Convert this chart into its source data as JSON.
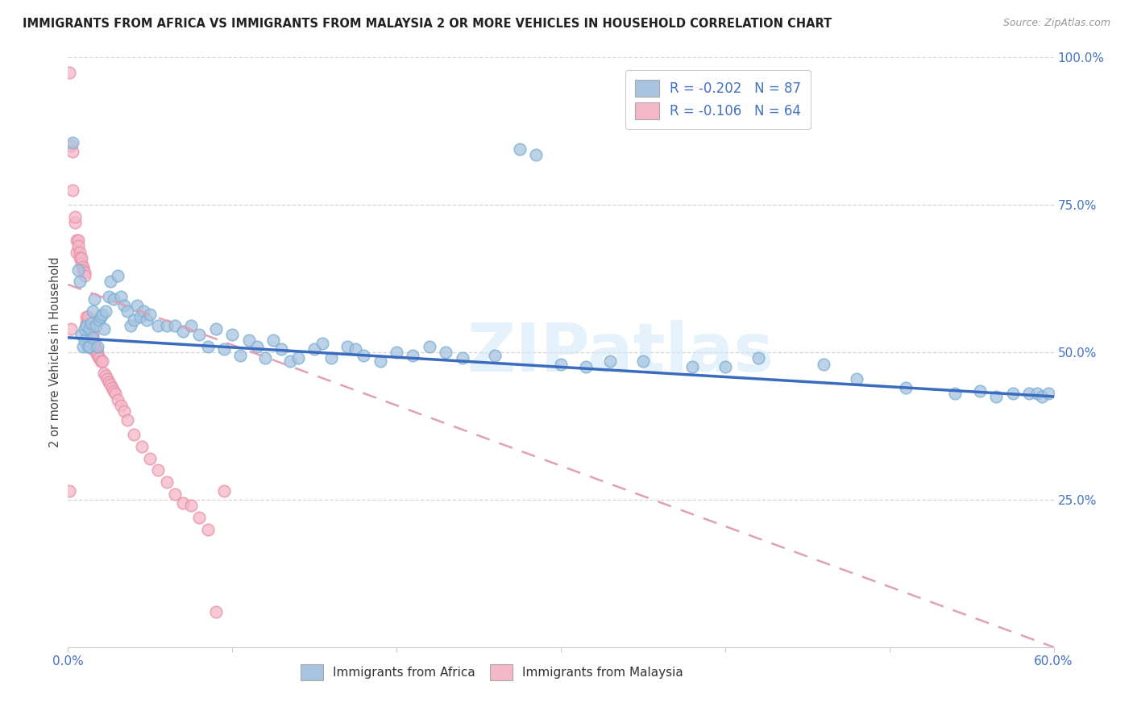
{
  "title": "IMMIGRANTS FROM AFRICA VS IMMIGRANTS FROM MALAYSIA 2 OR MORE VEHICLES IN HOUSEHOLD CORRELATION CHART",
  "source": "Source: ZipAtlas.com",
  "ylabel": "2 or more Vehicles in Household",
  "xlim": [
    0,
    0.6
  ],
  "ylim": [
    0,
    1.0
  ],
  "africa_color": "#a8c4e0",
  "africa_edge_color": "#7aafd4",
  "malaysia_color": "#f4b8c8",
  "malaysia_edge_color": "#e890a8",
  "africa_line_color": "#3a6bbf",
  "malaysia_line_color": "#e0a0b8",
  "legend_africa_label": "R = -0.202   N = 87",
  "legend_malaysia_label": "R = -0.106   N = 64",
  "watermark_text": "ZIPatlas",
  "africa_line_x0": 0.0,
  "africa_line_y0": 0.525,
  "africa_line_x1": 0.6,
  "africa_line_y1": 0.425,
  "malaysia_line_x0": 0.0,
  "malaysia_line_y0": 0.615,
  "malaysia_line_x1": 0.6,
  "malaysia_line_y1": 0.0,
  "africa_scatter_x": [
    0.003,
    0.006,
    0.007,
    0.008,
    0.009,
    0.01,
    0.01,
    0.011,
    0.012,
    0.013,
    0.013,
    0.014,
    0.015,
    0.015,
    0.016,
    0.017,
    0.018,
    0.019,
    0.02,
    0.021,
    0.022,
    0.023,
    0.025,
    0.026,
    0.028,
    0.03,
    0.032,
    0.034,
    0.036,
    0.038,
    0.04,
    0.042,
    0.044,
    0.046,
    0.048,
    0.05,
    0.055,
    0.06,
    0.065,
    0.07,
    0.075,
    0.08,
    0.085,
    0.09,
    0.095,
    0.1,
    0.105,
    0.11,
    0.115,
    0.12,
    0.125,
    0.13,
    0.135,
    0.14,
    0.15,
    0.155,
    0.16,
    0.17,
    0.175,
    0.18,
    0.19,
    0.2,
    0.21,
    0.22,
    0.23,
    0.24,
    0.26,
    0.275,
    0.285,
    0.3,
    0.315,
    0.33,
    0.35,
    0.38,
    0.4,
    0.42,
    0.46,
    0.48,
    0.51,
    0.54,
    0.555,
    0.565,
    0.575,
    0.585,
    0.59,
    0.593,
    0.597
  ],
  "africa_scatter_y": [
    0.855,
    0.64,
    0.62,
    0.53,
    0.51,
    0.52,
    0.54,
    0.545,
    0.51,
    0.51,
    0.54,
    0.55,
    0.525,
    0.57,
    0.59,
    0.545,
    0.51,
    0.555,
    0.56,
    0.565,
    0.54,
    0.57,
    0.595,
    0.62,
    0.59,
    0.63,
    0.595,
    0.58,
    0.57,
    0.545,
    0.555,
    0.58,
    0.56,
    0.57,
    0.555,
    0.565,
    0.545,
    0.545,
    0.545,
    0.535,
    0.545,
    0.53,
    0.51,
    0.54,
    0.505,
    0.53,
    0.495,
    0.52,
    0.51,
    0.49,
    0.52,
    0.505,
    0.485,
    0.49,
    0.505,
    0.515,
    0.49,
    0.51,
    0.505,
    0.495,
    0.485,
    0.5,
    0.495,
    0.51,
    0.5,
    0.49,
    0.495,
    0.845,
    0.835,
    0.48,
    0.475,
    0.485,
    0.485,
    0.475,
    0.475,
    0.49,
    0.48,
    0.455,
    0.44,
    0.43,
    0.435,
    0.425,
    0.43,
    0.43,
    0.43,
    0.425,
    0.43
  ],
  "malaysia_scatter_x": [
    0.001,
    0.001,
    0.002,
    0.002,
    0.003,
    0.003,
    0.004,
    0.004,
    0.005,
    0.005,
    0.006,
    0.006,
    0.007,
    0.007,
    0.008,
    0.008,
    0.009,
    0.009,
    0.01,
    0.01,
    0.011,
    0.011,
    0.012,
    0.012,
    0.013,
    0.013,
    0.014,
    0.014,
    0.015,
    0.015,
    0.016,
    0.016,
    0.017,
    0.017,
    0.018,
    0.018,
    0.019,
    0.019,
    0.02,
    0.021,
    0.022,
    0.023,
    0.024,
    0.025,
    0.026,
    0.027,
    0.028,
    0.029,
    0.03,
    0.032,
    0.034,
    0.036,
    0.04,
    0.045,
    0.05,
    0.055,
    0.06,
    0.065,
    0.07,
    0.075,
    0.08,
    0.085,
    0.09,
    0.095
  ],
  "malaysia_scatter_y": [
    0.975,
    0.265,
    0.85,
    0.54,
    0.84,
    0.775,
    0.72,
    0.73,
    0.69,
    0.67,
    0.69,
    0.68,
    0.67,
    0.66,
    0.65,
    0.66,
    0.645,
    0.64,
    0.635,
    0.63,
    0.56,
    0.55,
    0.555,
    0.56,
    0.54,
    0.54,
    0.53,
    0.53,
    0.53,
    0.505,
    0.51,
    0.515,
    0.5,
    0.505,
    0.5,
    0.495,
    0.49,
    0.49,
    0.485,
    0.485,
    0.465,
    0.46,
    0.455,
    0.45,
    0.445,
    0.44,
    0.435,
    0.43,
    0.42,
    0.41,
    0.4,
    0.385,
    0.36,
    0.34,
    0.32,
    0.3,
    0.28,
    0.26,
    0.245,
    0.24,
    0.22,
    0.2,
    0.06,
    0.265
  ]
}
